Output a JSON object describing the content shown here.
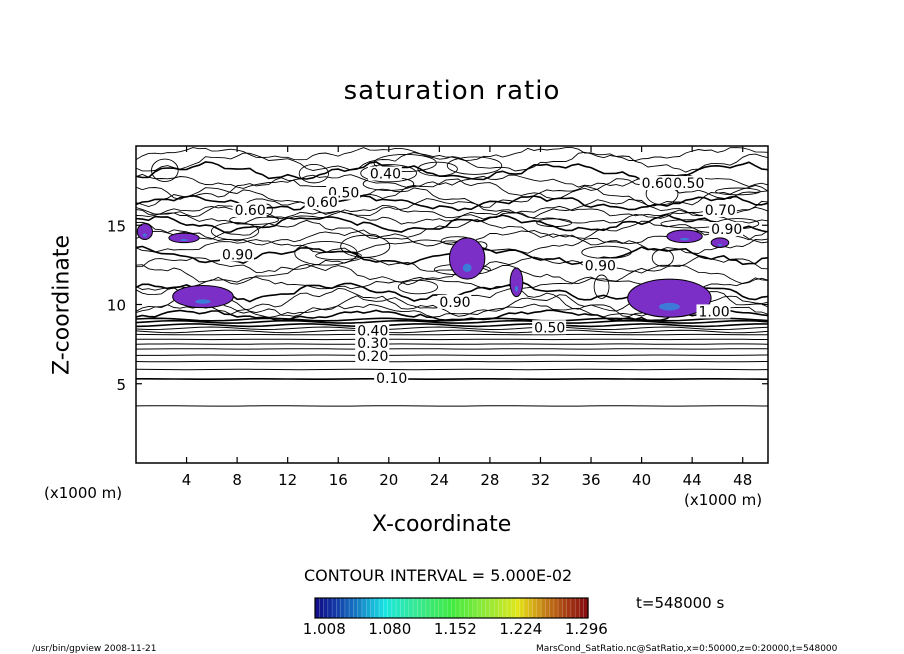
{
  "chart_data": {
    "type": "contour",
    "title": "saturation ratio",
    "xlabel": "X-coordinate",
    "ylabel": "Z-coordinate",
    "x_unit_label": "(x1000 m)",
    "x_unit_label_right": "(x1000 m)",
    "xlim": [
      0,
      50
    ],
    "ylim": [
      0,
      20
    ],
    "xticks": [
      "4",
      "8",
      "12",
      "16",
      "20",
      "24",
      "28",
      "32",
      "36",
      "40",
      "44",
      "48"
    ],
    "yticks": [
      "5",
      "10",
      "15"
    ],
    "contour_interval": "CONTOUR INTERVAL = 5.000E-02",
    "time_label": "t=548000 s",
    "colorbar": {
      "ticks": [
        "1.008",
        "1.080",
        "1.152",
        "1.224",
        "1.296"
      ],
      "range": [
        1.0,
        1.3
      ]
    },
    "contour_labels": [
      {
        "text": "0.10",
        "x": 19.0,
        "z": 5.3
      },
      {
        "text": "0.20",
        "x": 17.5,
        "z": 6.7
      },
      {
        "text": "0.30",
        "x": 17.5,
        "z": 7.5
      },
      {
        "text": "0.40",
        "x": 17.5,
        "z": 8.3
      },
      {
        "text": "0.50",
        "x": 31.5,
        "z": 8.5
      },
      {
        "text": "0.40",
        "x": 18.5,
        "z": 18.2
      },
      {
        "text": "0.50",
        "x": 15.2,
        "z": 17.0
      },
      {
        "text": "0.60",
        "x": 13.5,
        "z": 16.4
      },
      {
        "text": "0.60",
        "x": 7.8,
        "z": 15.9
      },
      {
        "text": "0.60",
        "x": 40.0,
        "z": 17.6
      },
      {
        "text": "0.50",
        "x": 42.5,
        "z": 17.6
      },
      {
        "text": "0.70",
        "x": 45.0,
        "z": 15.9
      },
      {
        "text": "0.90",
        "x": 45.5,
        "z": 14.7
      },
      {
        "text": "0.90",
        "x": 6.8,
        "z": 13.1
      },
      {
        "text": "0.90",
        "x": 35.5,
        "z": 12.4
      },
      {
        "text": "0.90",
        "x": 24.0,
        "z": 10.1
      },
      {
        "text": "1.00",
        "x": 44.5,
        "z": 9.5
      }
    ],
    "supersaturated_regions": [
      {
        "x": 0.7,
        "z": 14.6,
        "rx": 0.6,
        "rz": 0.5
      },
      {
        "x": 3.8,
        "z": 14.2,
        "rx": 1.2,
        "rz": 0.3
      },
      {
        "x": 5.3,
        "z": 10.5,
        "rx": 2.4,
        "rz": 0.7
      },
      {
        "x": 26.2,
        "z": 12.9,
        "rx": 1.4,
        "rz": 1.3
      },
      {
        "x": 30.1,
        "z": 11.4,
        "rx": 0.5,
        "rz": 0.9
      },
      {
        "x": 42.2,
        "z": 10.4,
        "rx": 3.3,
        "rz": 1.2
      },
      {
        "x": 43.4,
        "z": 14.3,
        "rx": 1.4,
        "rz": 0.4
      },
      {
        "x": 46.2,
        "z": 13.9,
        "rx": 0.7,
        "rz": 0.3
      }
    ],
    "colors": {
      "fill": "#7b2fc6",
      "fill_core": "#3e7ad8",
      "line": "#000000"
    }
  },
  "footer": {
    "left": "/usr/bin/gpview   2008-11-21",
    "right": "MarsCond_SatRatio.nc@SatRatio,x=0:50000,z=0:20000,t=548000"
  }
}
